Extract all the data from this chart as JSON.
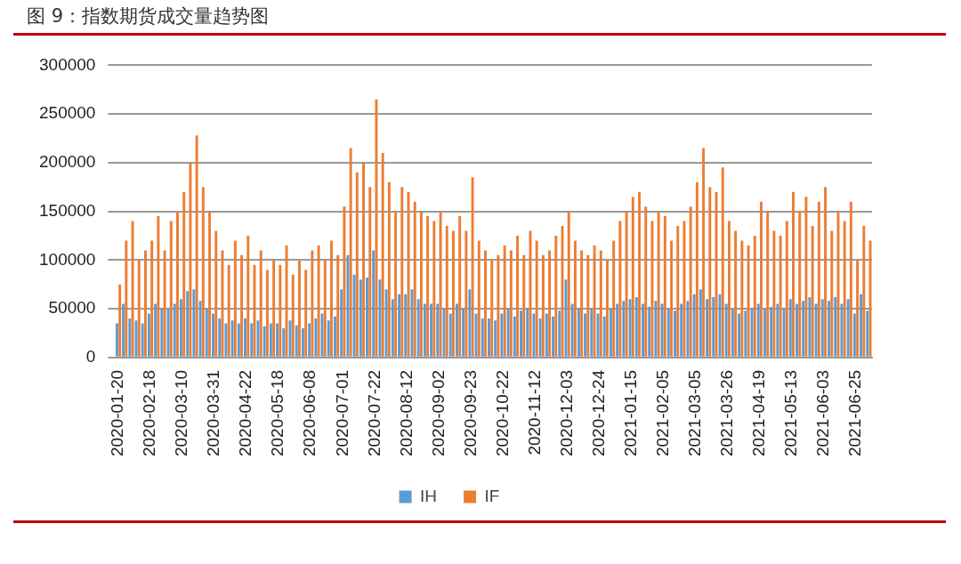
{
  "chart_data": {
    "type": "bar",
    "title": "图 9：指数期货成交量趋势图",
    "categories": [
      "2020-01-20",
      null,
      null,
      null,
      null,
      "2020-02-18",
      null,
      null,
      null,
      null,
      "2020-03-10",
      null,
      null,
      null,
      null,
      "2020-03-31",
      null,
      null,
      null,
      null,
      "2020-04-22",
      null,
      null,
      null,
      null,
      "2020-05-18",
      null,
      null,
      null,
      null,
      "2020-06-08",
      null,
      null,
      null,
      null,
      "2020-07-01",
      null,
      null,
      null,
      null,
      "2020-07-22",
      null,
      null,
      null,
      null,
      "2020-08-12",
      null,
      null,
      null,
      null,
      "2020-09-02",
      null,
      null,
      null,
      null,
      "2020-09-23",
      null,
      null,
      null,
      null,
      "2020-10-22",
      null,
      null,
      null,
      null,
      "2020-11-12",
      null,
      null,
      null,
      null,
      "2020-12-03",
      null,
      null,
      null,
      null,
      "2020-12-24",
      null,
      null,
      null,
      null,
      "2021-01-15",
      null,
      null,
      null,
      null,
      "2021-02-05",
      null,
      null,
      null,
      null,
      "2021-03-05",
      null,
      null,
      null,
      null,
      "2021-03-26",
      null,
      null,
      null,
      null,
      "2021-04-19",
      null,
      null,
      null,
      null,
      "2021-05-13",
      null,
      null,
      null,
      null,
      "2021-06-03",
      null,
      null,
      null,
      null,
      "2021-06-25",
      null,
      null
    ],
    "series": [
      {
        "name": "IH",
        "color": "#5b9bd5",
        "values": [
          35000,
          55000,
          40000,
          38000,
          35000,
          45000,
          55000,
          50000,
          50000,
          55000,
          60000,
          68000,
          70000,
          58000,
          50000,
          45000,
          40000,
          35000,
          38000,
          35000,
          40000,
          35000,
          38000,
          32000,
          35000,
          35000,
          30000,
          38000,
          33000,
          30000,
          35000,
          40000,
          45000,
          38000,
          42000,
          70000,
          105000,
          85000,
          80000,
          82000,
          110000,
          80000,
          70000,
          60000,
          65000,
          65000,
          70000,
          60000,
          55000,
          55000,
          55000,
          50000,
          45000,
          55000,
          50000,
          70000,
          45000,
          40000,
          40000,
          38000,
          45000,
          50000,
          42000,
          48000,
          50000,
          45000,
          40000,
          45000,
          42000,
          48000,
          80000,
          55000,
          50000,
          45000,
          50000,
          45000,
          42000,
          50000,
          55000,
          58000,
          60000,
          62000,
          55000,
          52000,
          58000,
          55000,
          50000,
          48000,
          55000,
          58000,
          65000,
          70000,
          60000,
          62000,
          65000,
          55000,
          50000,
          45000,
          48000,
          50000,
          55000,
          50000,
          52000,
          55000,
          50000,
          60000,
          55000,
          58000,
          62000,
          55000,
          60000,
          58000,
          62000,
          55000,
          60000,
          45000,
          65000,
          48000
        ]
      },
      {
        "name": "IF",
        "color": "#ed7d31",
        "values": [
          75000,
          120000,
          140000,
          100000,
          110000,
          120000,
          145000,
          110000,
          140000,
          150000,
          170000,
          200000,
          228000,
          175000,
          150000,
          130000,
          110000,
          95000,
          120000,
          105000,
          125000,
          95000,
          110000,
          90000,
          100000,
          95000,
          115000,
          85000,
          100000,
          90000,
          110000,
          115000,
          100000,
          120000,
          105000,
          155000,
          215000,
          190000,
          200000,
          175000,
          265000,
          210000,
          180000,
          150000,
          175000,
          170000,
          160000,
          150000,
          145000,
          140000,
          150000,
          135000,
          130000,
          145000,
          130000,
          185000,
          120000,
          110000,
          100000,
          105000,
          115000,
          110000,
          125000,
          105000,
          130000,
          120000,
          105000,
          110000,
          125000,
          135000,
          150000,
          120000,
          110000,
          105000,
          115000,
          110000,
          100000,
          120000,
          140000,
          150000,
          165000,
          170000,
          155000,
          140000,
          150000,
          145000,
          120000,
          135000,
          140000,
          155000,
          180000,
          215000,
          175000,
          170000,
          195000,
          140000,
          130000,
          120000,
          115000,
          125000,
          160000,
          150000,
          130000,
          125000,
          140000,
          170000,
          150000,
          165000,
          135000,
          160000,
          175000,
          130000,
          150000,
          140000,
          160000,
          100000,
          135000,
          120000
        ]
      }
    ],
    "ylim": [
      0,
      300000
    ],
    "yticks": [
      0,
      50000,
      100000,
      150000,
      200000,
      250000,
      300000
    ],
    "grid": "y",
    "legend": "bottom"
  }
}
